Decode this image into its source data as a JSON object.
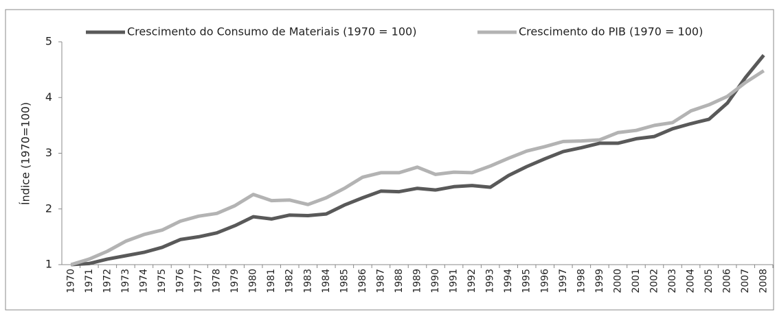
{
  "chart_data": {
    "type": "line",
    "y_label": "Índice (1970=100)",
    "categories": [
      "1970",
      "1971",
      "1972",
      "1973",
      "1974",
      "1975",
      "1976",
      "1977",
      "1978",
      "1979",
      "1980",
      "1981",
      "1982",
      "1983",
      "1984",
      "1985",
      "1986",
      "1987",
      "1988",
      "1989",
      "1990",
      "1991",
      "1992",
      "1993",
      "1994",
      "1995",
      "1996",
      "1997",
      "1998",
      "1999",
      "2000",
      "2001",
      "2002",
      "2003",
      "2004",
      "2005",
      "2006",
      "2007",
      "2008"
    ],
    "series": [
      {
        "name": "Crescimento do Consumo de Materiais (1970 = 100)",
        "color": "#595959",
        "values": [
          1.0,
          1.02,
          1.1,
          1.16,
          1.22,
          1.31,
          1.45,
          1.5,
          1.57,
          1.7,
          1.86,
          1.82,
          1.89,
          1.88,
          1.91,
          2.07,
          2.2,
          2.32,
          2.31,
          2.37,
          2.34,
          2.4,
          2.42,
          2.39,
          2.6,
          2.76,
          2.9,
          3.03,
          3.1,
          3.18,
          3.18,
          3.26,
          3.3,
          3.44,
          3.53,
          3.61,
          3.9,
          4.36,
          4.76
        ]
      },
      {
        "name": "Crescimento do PIB (1970 = 100)",
        "color": "#b3b3b3",
        "values": [
          1.0,
          1.1,
          1.24,
          1.42,
          1.54,
          1.62,
          1.78,
          1.87,
          1.92,
          2.06,
          2.26,
          2.15,
          2.16,
          2.08,
          2.2,
          2.37,
          2.57,
          2.65,
          2.65,
          2.75,
          2.62,
          2.66,
          2.65,
          2.77,
          2.91,
          3.04,
          3.12,
          3.21,
          3.22,
          3.24,
          3.37,
          3.41,
          3.5,
          3.55,
          3.76,
          3.87,
          4.02,
          4.27,
          4.48
        ]
      }
    ],
    "ylim": [
      1,
      5
    ],
    "yticks": [
      1,
      2,
      3,
      4,
      5
    ],
    "grid": false,
    "legend": "top"
  }
}
